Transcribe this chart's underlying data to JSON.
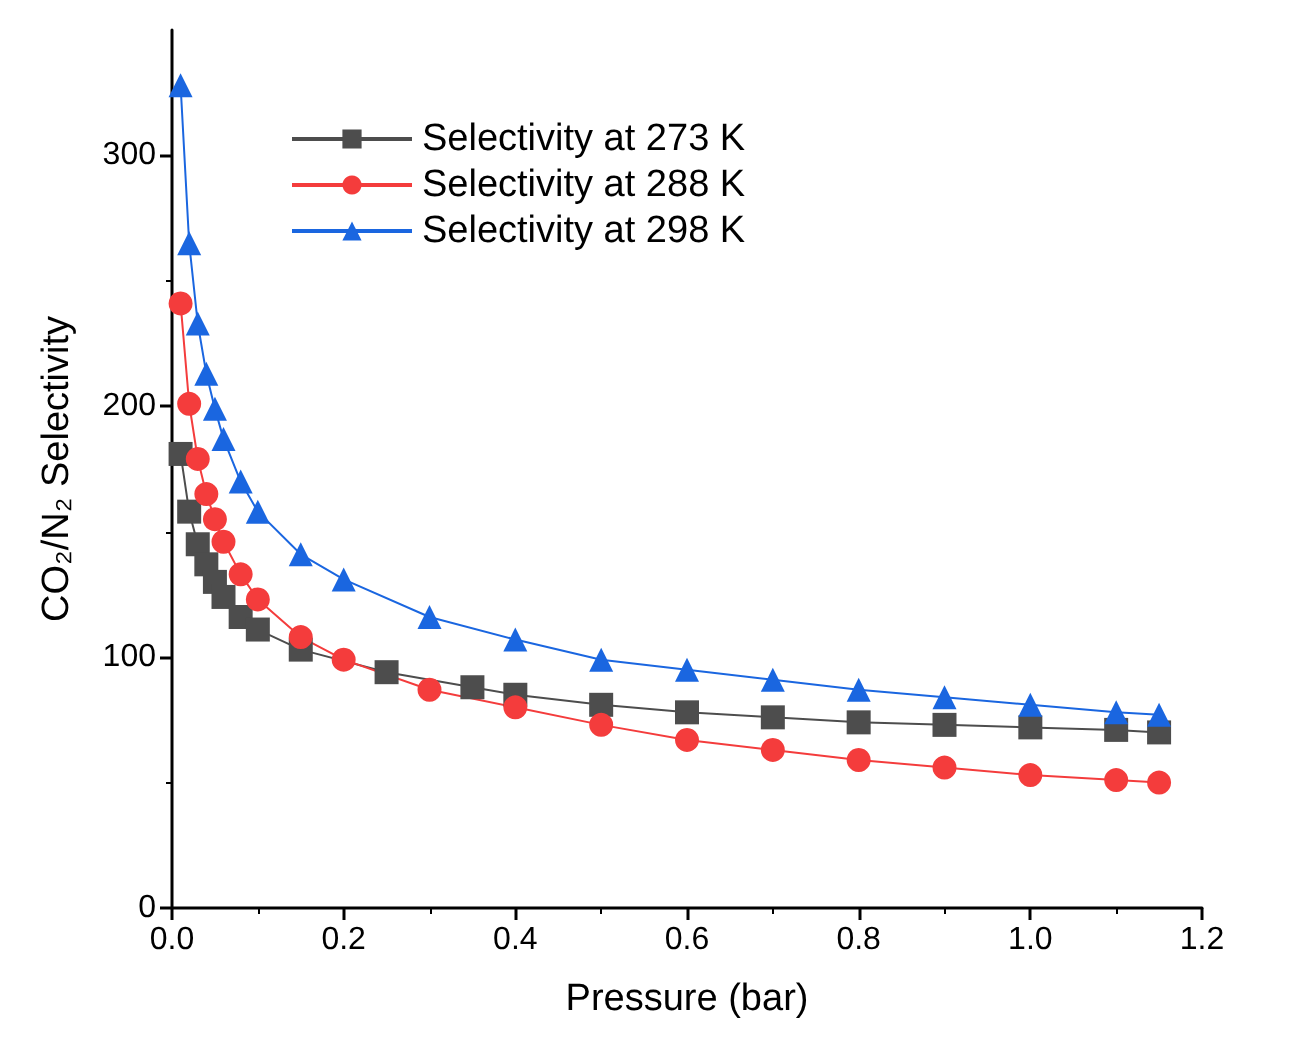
{
  "chart_data": {
    "type": "line",
    "xlabel": "Pressure (bar)",
    "ylabel": "CO₂/N₂ Selectivity",
    "x": [
      0.01,
      0.02,
      0.03,
      0.04,
      0.05,
      0.06,
      0.08,
      0.1,
      0.15,
      0.2,
      0.3,
      0.4,
      0.5,
      0.6,
      0.7,
      0.8,
      0.9,
      1.0,
      1.1,
      1.15
    ],
    "series": [
      {
        "name": "Selectivity at 273 K",
        "color": "#4d4d4d",
        "marker": "square",
        "x": [
          0.01,
          0.02,
          0.03,
          0.04,
          0.05,
          0.06,
          0.08,
          0.1,
          0.15,
          0.25,
          0.35,
          0.4,
          0.5,
          0.6,
          0.7,
          0.8,
          0.9,
          1.0,
          1.1,
          1.15
        ],
        "values": [
          181,
          158,
          145,
          137,
          130,
          124,
          116,
          111,
          103,
          94,
          88,
          85,
          81,
          78,
          76,
          74,
          73,
          72,
          71,
          70
        ]
      },
      {
        "name": "Selectivity at 288 K",
        "color": "#f43c3c",
        "marker": "circle",
        "values": [
          241,
          201,
          179,
          165,
          155,
          146,
          133,
          123,
          108,
          99,
          87,
          80,
          73,
          67,
          63,
          59,
          56,
          53,
          51,
          50
        ]
      },
      {
        "name": "Selectivity at 298 K",
        "color": "#1a66e0",
        "marker": "triangle",
        "values": [
          328,
          265,
          233,
          213,
          199,
          187,
          170,
          158,
          141,
          131,
          116,
          107,
          99,
          95,
          91,
          87,
          84,
          81,
          78,
          77
        ]
      }
    ],
    "xlim": [
      0,
      1.2
    ],
    "xticks": [
      {
        "value": 0,
        "label": "0.0"
      },
      {
        "value": 0.2,
        "label": "0.2"
      },
      {
        "value": 0.4,
        "label": "0.4"
      },
      {
        "value": 0.6,
        "label": "0.6"
      },
      {
        "value": 0.8,
        "label": "0.8"
      },
      {
        "value": 1,
        "label": "1.0"
      },
      {
        "value": 1.2,
        "label": "1.2"
      }
    ],
    "ylim": [
      0,
      350
    ],
    "yticks": [
      0,
      100,
      200,
      300
    ],
    "grid": false,
    "legend": "top left",
    "line_style": "solid"
  }
}
